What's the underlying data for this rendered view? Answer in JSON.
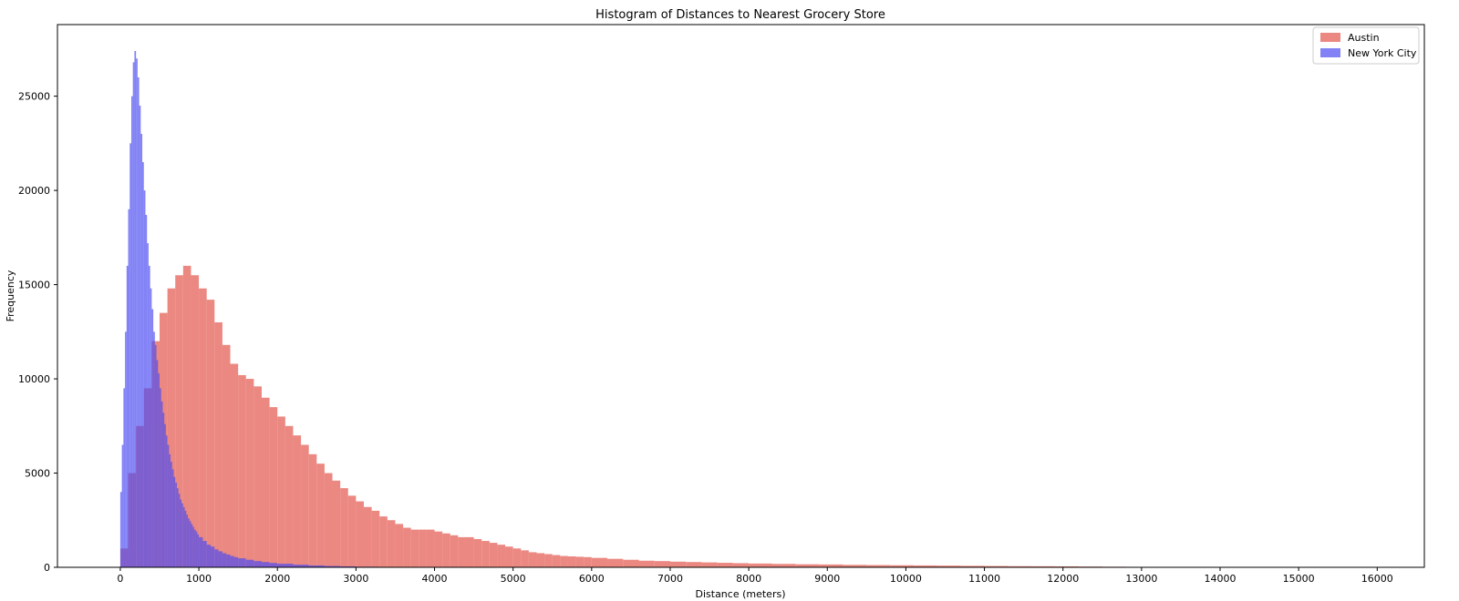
{
  "chart_data": {
    "type": "histogram",
    "title": "Histogram of Distances to Nearest Grocery Store",
    "xlabel": "Distance (meters)",
    "ylabel": "Frequency",
    "xlim": [
      -800,
      16600
    ],
    "ylim": [
      0,
      28800
    ],
    "xticks": [
      "0",
      "1000",
      "2000",
      "3000",
      "4000",
      "5000",
      "6000",
      "7000",
      "8000",
      "9000",
      "10000",
      "11000",
      "12000",
      "13000",
      "14000",
      "15000",
      "16000"
    ],
    "yticks": [
      "0",
      "5000",
      "10000",
      "15000",
      "20000",
      "25000"
    ],
    "grid": false,
    "legend_position": "top-right",
    "series": [
      {
        "name": "Austin",
        "color": "#e8736b",
        "alpha": 0.85,
        "bins": [
          [
            0,
            1000
          ],
          [
            100,
            5000
          ],
          [
            200,
            7500
          ],
          [
            300,
            9500
          ],
          [
            400,
            12000
          ],
          [
            500,
            13500
          ],
          [
            600,
            14800
          ],
          [
            700,
            15500
          ],
          [
            800,
            16000
          ],
          [
            900,
            15500
          ],
          [
            1000,
            14800
          ],
          [
            1100,
            14200
          ],
          [
            1200,
            13000
          ],
          [
            1300,
            11800
          ],
          [
            1400,
            10800
          ],
          [
            1500,
            10200
          ],
          [
            1600,
            10000
          ],
          [
            1700,
            9600
          ],
          [
            1800,
            9000
          ],
          [
            1900,
            8500
          ],
          [
            2000,
            8000
          ],
          [
            2100,
            7500
          ],
          [
            2200,
            7000
          ],
          [
            2300,
            6500
          ],
          [
            2400,
            6000
          ],
          [
            2500,
            5500
          ],
          [
            2600,
            5000
          ],
          [
            2700,
            4600
          ],
          [
            2800,
            4200
          ],
          [
            2900,
            3800
          ],
          [
            3000,
            3500
          ],
          [
            3100,
            3200
          ],
          [
            3200,
            3000
          ],
          [
            3300,
            2700
          ],
          [
            3400,
            2500
          ],
          [
            3500,
            2300
          ],
          [
            3600,
            2100
          ],
          [
            3700,
            2000
          ],
          [
            3800,
            2000
          ],
          [
            3900,
            2000
          ],
          [
            4000,
            1900
          ],
          [
            4100,
            1800
          ],
          [
            4200,
            1700
          ],
          [
            4300,
            1600
          ],
          [
            4400,
            1600
          ],
          [
            4500,
            1500
          ],
          [
            4600,
            1400
          ],
          [
            4700,
            1300
          ],
          [
            4800,
            1200
          ],
          [
            4900,
            1100
          ],
          [
            5000,
            1000
          ],
          [
            5100,
            900
          ],
          [
            5200,
            800
          ],
          [
            5300,
            750
          ],
          [
            5400,
            700
          ],
          [
            5500,
            650
          ],
          [
            5600,
            600
          ],
          [
            5700,
            580
          ],
          [
            5800,
            560
          ],
          [
            5900,
            540
          ],
          [
            6000,
            500
          ],
          [
            6200,
            450
          ],
          [
            6400,
            400
          ],
          [
            6600,
            350
          ],
          [
            6800,
            330
          ],
          [
            7000,
            300
          ],
          [
            7200,
            280
          ],
          [
            7400,
            260
          ],
          [
            7600,
            240
          ],
          [
            7800,
            220
          ],
          [
            8000,
            200
          ],
          [
            8300,
            180
          ],
          [
            8600,
            160
          ],
          [
            8900,
            150
          ],
          [
            9200,
            130
          ],
          [
            9500,
            120
          ],
          [
            9800,
            110
          ],
          [
            10100,
            100
          ],
          [
            10400,
            90
          ],
          [
            10700,
            80
          ],
          [
            11000,
            70
          ],
          [
            11300,
            60
          ],
          [
            11600,
            55
          ],
          [
            11900,
            50
          ],
          [
            12200,
            40
          ],
          [
            12500,
            30
          ],
          [
            12800,
            20
          ],
          [
            13100,
            15
          ],
          [
            13400,
            10
          ],
          [
            13700,
            8
          ],
          [
            14000,
            5
          ],
          [
            14300,
            4
          ],
          [
            14600,
            3
          ],
          [
            14900,
            2
          ],
          [
            15200,
            2
          ],
          [
            15500,
            1
          ],
          [
            15800,
            1
          ]
        ]
      },
      {
        "name": "New York City",
        "color": "#4d4df2",
        "alpha": 0.7,
        "bins": [
          [
            0,
            4000
          ],
          [
            20,
            6500
          ],
          [
            40,
            9500
          ],
          [
            60,
            12500
          ],
          [
            80,
            16000
          ],
          [
            100,
            19000
          ],
          [
            120,
            22500
          ],
          [
            140,
            25000
          ],
          [
            160,
            26800
          ],
          [
            180,
            27400
          ],
          [
            200,
            27000
          ],
          [
            220,
            26000
          ],
          [
            240,
            24500
          ],
          [
            260,
            23000
          ],
          [
            280,
            21500
          ],
          [
            300,
            20000
          ],
          [
            320,
            18700
          ],
          [
            340,
            17200
          ],
          [
            360,
            16000
          ],
          [
            380,
            14800
          ],
          [
            400,
            13700
          ],
          [
            420,
            12500
          ],
          [
            440,
            11800
          ],
          [
            460,
            11000
          ],
          [
            480,
            10300
          ],
          [
            500,
            9500
          ],
          [
            520,
            8800
          ],
          [
            540,
            8200
          ],
          [
            560,
            7600
          ],
          [
            580,
            7000
          ],
          [
            600,
            6500
          ],
          [
            620,
            6000
          ],
          [
            640,
            5600
          ],
          [
            660,
            5200
          ],
          [
            680,
            4800
          ],
          [
            700,
            4500
          ],
          [
            720,
            4200
          ],
          [
            740,
            3900
          ],
          [
            760,
            3600
          ],
          [
            780,
            3400
          ],
          [
            800,
            3200
          ],
          [
            820,
            3000
          ],
          [
            840,
            2800
          ],
          [
            860,
            2600
          ],
          [
            880,
            2450
          ],
          [
            900,
            2300
          ],
          [
            920,
            2150
          ],
          [
            940,
            2000
          ],
          [
            960,
            1900
          ],
          [
            980,
            1750
          ],
          [
            1000,
            1600
          ],
          [
            1050,
            1400
          ],
          [
            1100,
            1200
          ],
          [
            1150,
            1100
          ],
          [
            1200,
            950
          ],
          [
            1250,
            850
          ],
          [
            1300,
            750
          ],
          [
            1350,
            680
          ],
          [
            1400,
            600
          ],
          [
            1450,
            540
          ],
          [
            1500,
            480
          ],
          [
            1600,
            400
          ],
          [
            1700,
            330
          ],
          [
            1800,
            280
          ],
          [
            1900,
            230
          ],
          [
            2000,
            190
          ],
          [
            2200,
            140
          ],
          [
            2400,
            100
          ],
          [
            2600,
            70
          ],
          [
            2800,
            50
          ],
          [
            3000,
            30
          ],
          [
            3300,
            20
          ],
          [
            3600,
            12
          ],
          [
            4000,
            6
          ]
        ]
      }
    ]
  }
}
